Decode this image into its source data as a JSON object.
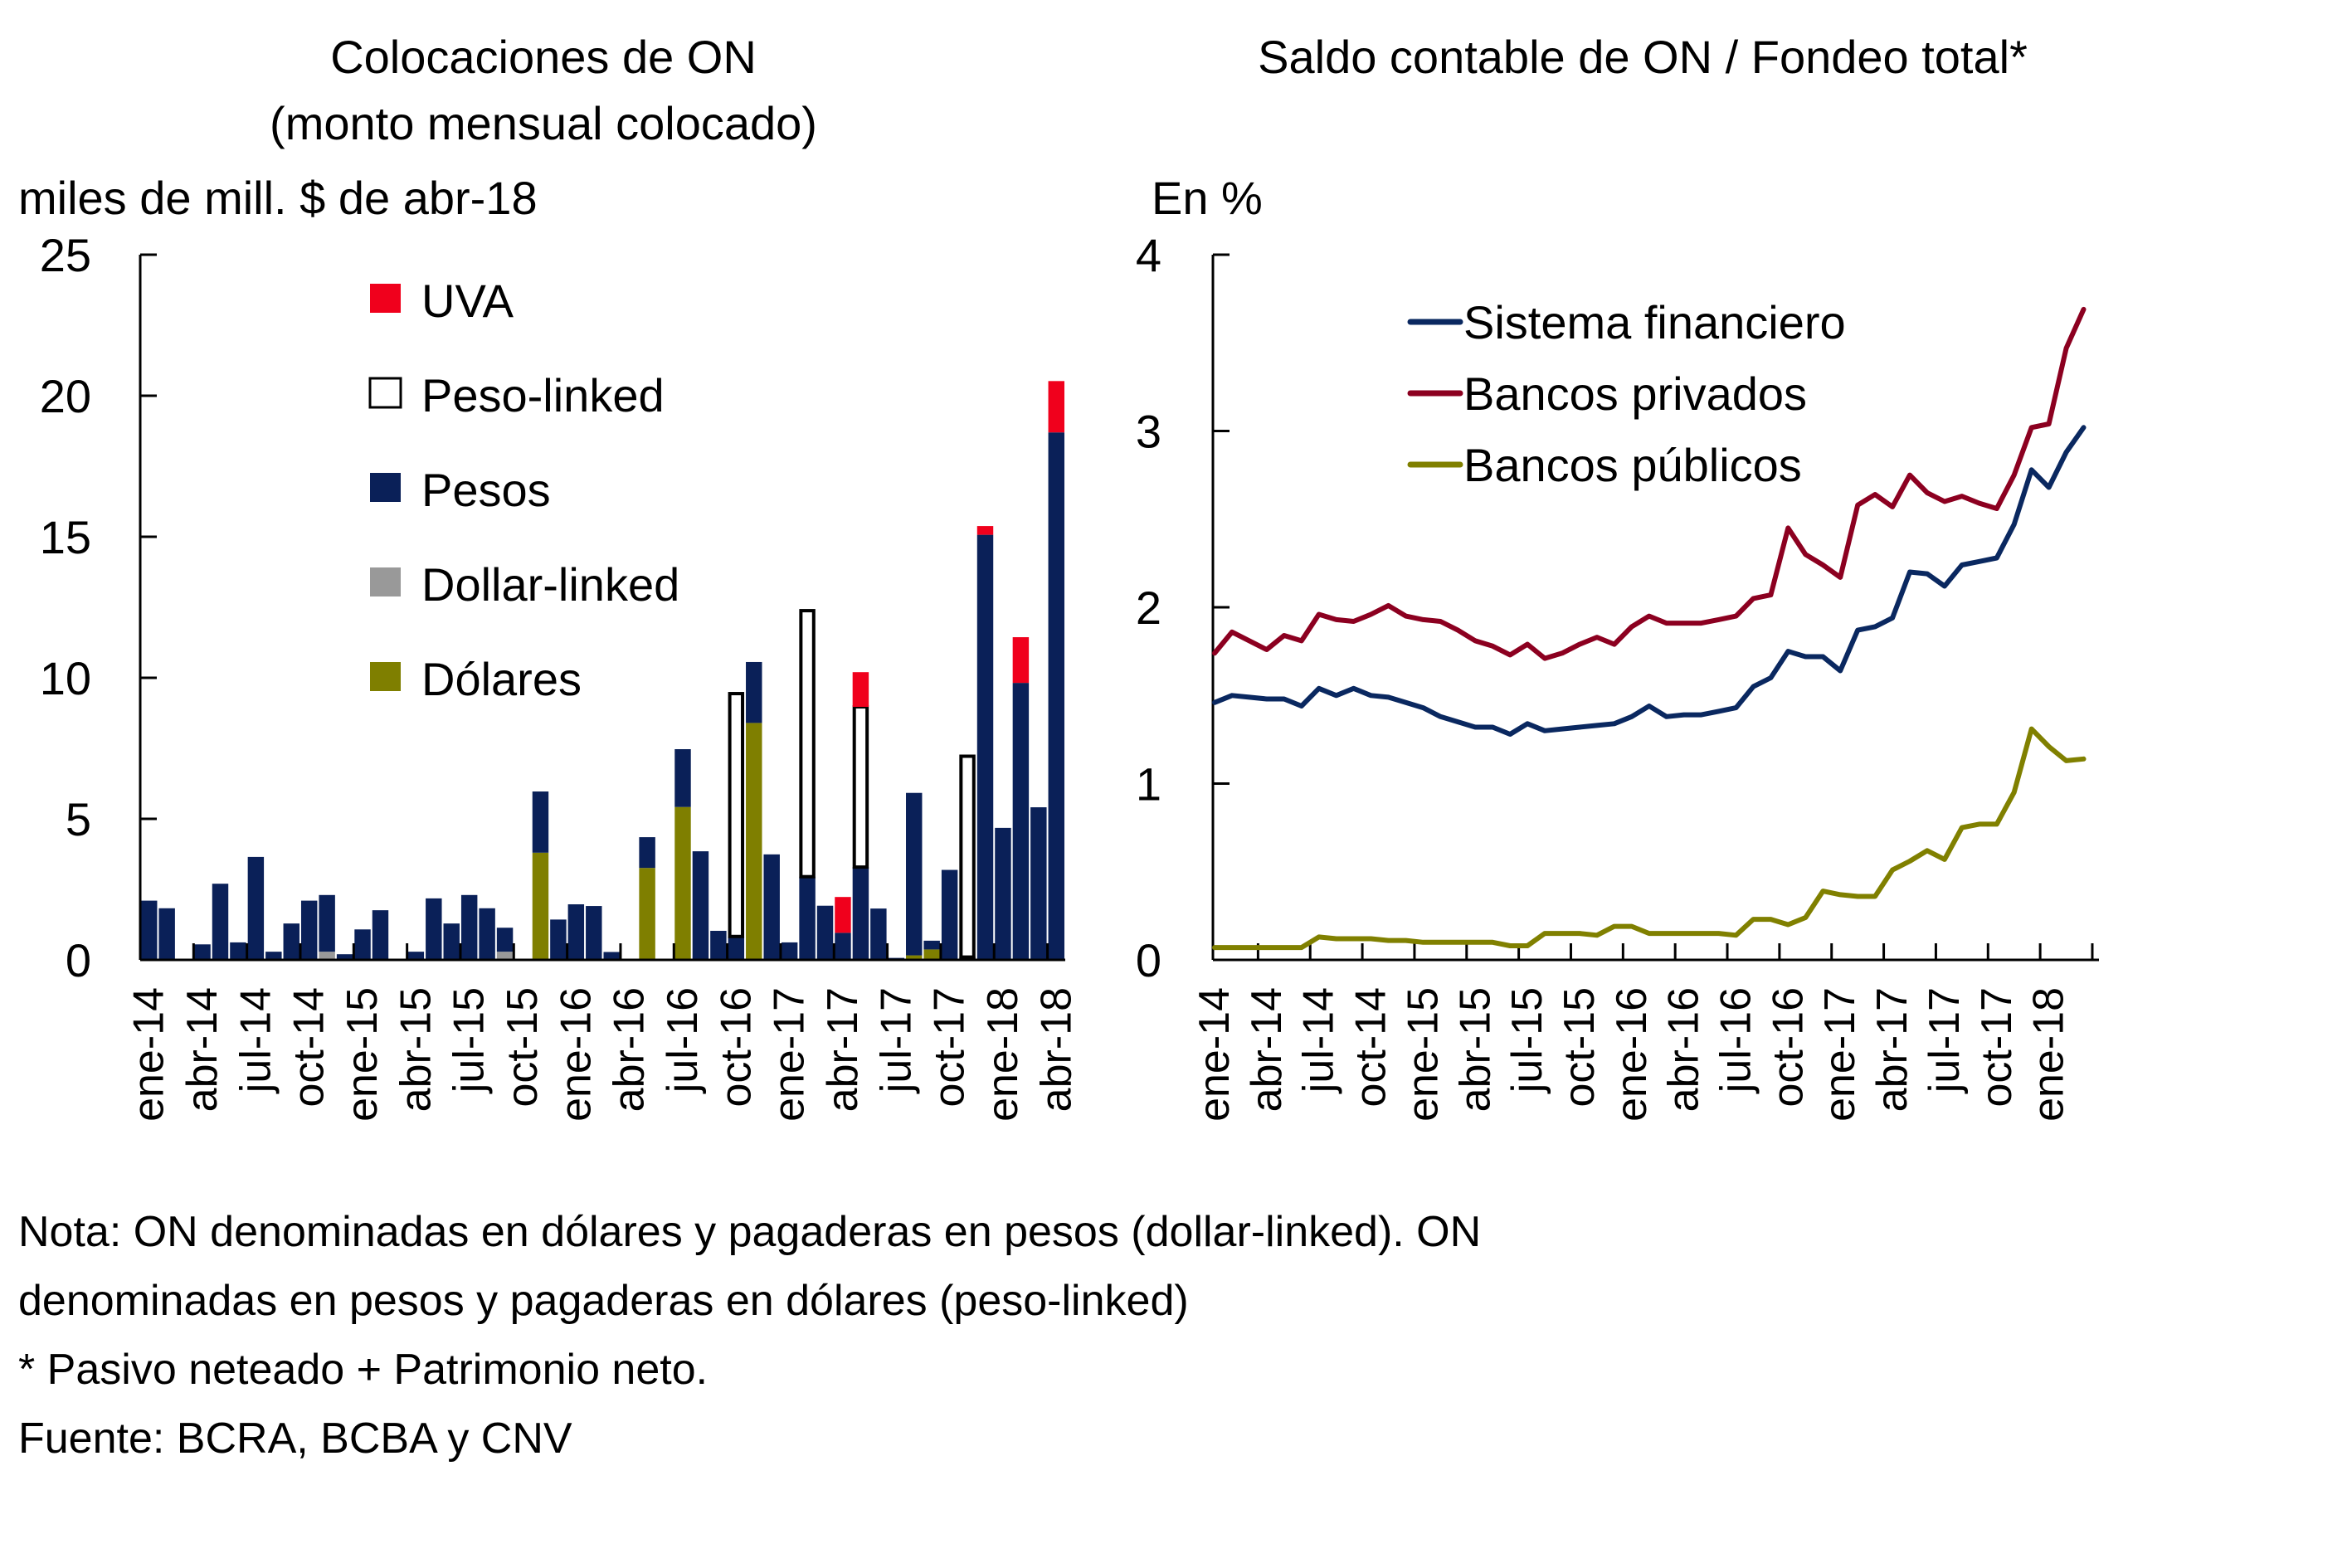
{
  "colors": {
    "uva": "#F0001C",
    "peso_linked_fill": "#FFFFFF",
    "peso_linked_stroke": "#000000",
    "pesos": "#0A2058",
    "dollar_linked": "#999999",
    "dolares": "#7F7F00",
    "sistema_financiero": "#0A2860",
    "bancos_privados": "#8C0020",
    "bancos_publicos": "#808000"
  },
  "notes": [
    "Nota: ON denominadas en dólares y pagaderas en pesos (dollar-linked). ON",
    "denominadas en pesos y pagaderas en dólares (peso-linked)",
    "* Pasivo neteado + Patrimonio neto.",
    "Fuente: BCRA, BCBA y CNV"
  ],
  "chart_data": [
    {
      "type": "bar",
      "stacked": true,
      "title": "Colocaciones de ON",
      "subtitle": "(monto mensual colocado)",
      "ylabel": "miles de mill. $ de abr-18",
      "xlabel": "",
      "ylim": [
        0,
        25
      ],
      "yticks": [
        0,
        5,
        10,
        15,
        20,
        25
      ],
      "xtick_labels": [
        "ene-14",
        "abr-14",
        "jul-14",
        "oct-14",
        "ene-15",
        "abr-15",
        "jul-15",
        "oct-15",
        "ene-16",
        "abr-16",
        "jul-16",
        "oct-16",
        "ene-17",
        "abr-17",
        "jul-17",
        "oct-17",
        "ene-18",
        "abr-18"
      ],
      "legend_position": "top-center",
      "categories": [
        "ene-14",
        "feb-14",
        "mar-14",
        "abr-14",
        "may-14",
        "jun-14",
        "jul-14",
        "ago-14",
        "sep-14",
        "oct-14",
        "nov-14",
        "dic-14",
        "ene-15",
        "feb-15",
        "mar-15",
        "abr-15",
        "may-15",
        "jun-15",
        "jul-15",
        "ago-15",
        "sep-15",
        "oct-15",
        "nov-15",
        "dic-15",
        "ene-16",
        "feb-16",
        "mar-16",
        "abr-16",
        "may-16",
        "jun-16",
        "jul-16",
        "ago-16",
        "sep-16",
        "oct-16",
        "nov-16",
        "dic-16",
        "ene-17",
        "feb-17",
        "mar-17",
        "abr-17",
        "may-17",
        "jun-17",
        "jul-17",
        "ago-17",
        "sep-17",
        "oct-17",
        "nov-17",
        "dic-17",
        "ene-18",
        "feb-18",
        "mar-18",
        "abr-18"
      ],
      "series": [
        {
          "name": "Dólares",
          "key": "dolares",
          "values": [
            0,
            0,
            0,
            0,
            0,
            0,
            0,
            0,
            0,
            0,
            0,
            0,
            0,
            0,
            0,
            0,
            0,
            0,
            0,
            0,
            0,
            0,
            3.8,
            0,
            0,
            0,
            0,
            0,
            3.26,
            0,
            5.42,
            0,
            0,
            0,
            8.4,
            0,
            0,
            0,
            0,
            0,
            0,
            0,
            0,
            0.16,
            0.37,
            0,
            0,
            0,
            0,
            0,
            0,
            0
          ]
        },
        {
          "name": "Dollar-linked",
          "key": "dollar_linked",
          "values": [
            0,
            0,
            0,
            0,
            0,
            0,
            0,
            0,
            0,
            0,
            0.29,
            0,
            0,
            0,
            0,
            0,
            0,
            0,
            0,
            0,
            0.29,
            0,
            0,
            0,
            0,
            0,
            0,
            0,
            0,
            0,
            0,
            0,
            0,
            0,
            0,
            0,
            0,
            0,
            0,
            0,
            0,
            0,
            0,
            0,
            0,
            0,
            0,
            0,
            0,
            0,
            0,
            0
          ]
        },
        {
          "name": "Pesos",
          "key": "pesos",
          "values": [
            2.1,
            1.83,
            0,
            0.55,
            2.7,
            0.62,
            3.65,
            0.29,
            1.29,
            2.1,
            2.01,
            0.2,
            1.08,
            1.76,
            0,
            0.29,
            2.18,
            1.29,
            2.3,
            1.83,
            0.85,
            0,
            2.17,
            1.43,
            1.97,
            1.91,
            0.28,
            0,
            1.09,
            0,
            2.05,
            3.85,
            1.03,
            0.83,
            2.16,
            3.74,
            0.62,
            2.95,
            1.92,
            0.96,
            3.29,
            1.82,
            0.07,
            5.76,
            0.31,
            3.19,
            0.1,
            15.07,
            4.68,
            9.82,
            5.41,
            18.7
          ]
        },
        {
          "name": "Peso-linked",
          "key": "peso_linked",
          "values": [
            0,
            0,
            0,
            0,
            0,
            0,
            0,
            0,
            0,
            0,
            0,
            0,
            0,
            0,
            0,
            0,
            0,
            0,
            0,
            0,
            0,
            0,
            0,
            0,
            0,
            0,
            0,
            0,
            0,
            0,
            0,
            0,
            0,
            8.61,
            0,
            0,
            0,
            9.43,
            0,
            0,
            5.68,
            0,
            0,
            0,
            0,
            0,
            7.12,
            0,
            0,
            0,
            0,
            0
          ]
        },
        {
          "name": "UVA",
          "key": "uva",
          "values": [
            0,
            0,
            0,
            0,
            0,
            0,
            0,
            0,
            0,
            0,
            0,
            0,
            0,
            0,
            0,
            0,
            0,
            0,
            0,
            0,
            0,
            0,
            0,
            0,
            0,
            0,
            0,
            0,
            0,
            0,
            0,
            0,
            0,
            0,
            0,
            0,
            0,
            0,
            0,
            1.27,
            1.23,
            0,
            0,
            0,
            0,
            0,
            0,
            0.31,
            0,
            1.62,
            0,
            1.82
          ]
        }
      ],
      "legend": [
        {
          "name": "UVA",
          "key": "uva"
        },
        {
          "name": "Peso-linked",
          "key": "peso_linked"
        },
        {
          "name": "Pesos",
          "key": "pesos"
        },
        {
          "name": "Dollar-linked",
          "key": "dollar_linked"
        },
        {
          "name": "Dólares",
          "key": "dolares"
        }
      ]
    },
    {
      "type": "line",
      "title": "Saldo contable de ON / Fondeo total*",
      "ylabel": "En %",
      "xlabel": "",
      "ylim": [
        0,
        4
      ],
      "yticks": [
        0,
        1,
        2,
        3,
        4
      ],
      "xtick_labels": [
        "ene-14",
        "abr-14",
        "jul-14",
        "oct-14",
        "ene-15",
        "abr-15",
        "jul-15",
        "oct-15",
        "ene-16",
        "abr-16",
        "jul-16",
        "oct-16",
        "ene-17",
        "abr-17",
        "jul-17",
        "oct-17",
        "ene-18"
      ],
      "legend_position": "top-left",
      "x": [
        "ene-14",
        "feb-14",
        "mar-14",
        "abr-14",
        "may-14",
        "jun-14",
        "jul-14",
        "ago-14",
        "sep-14",
        "oct-14",
        "nov-14",
        "dic-14",
        "ene-15",
        "feb-15",
        "mar-15",
        "abr-15",
        "may-15",
        "jun-15",
        "jul-15",
        "ago-15",
        "sep-15",
        "oct-15",
        "nov-15",
        "dic-15",
        "ene-16",
        "feb-16",
        "mar-16",
        "abr-16",
        "may-16",
        "jun-16",
        "jul-16",
        "ago-16",
        "sep-16",
        "oct-16",
        "nov-16",
        "dic-16",
        "ene-17",
        "feb-17",
        "mar-17",
        "abr-17",
        "may-17",
        "jun-17",
        "jul-17",
        "ago-17",
        "sep-17",
        "oct-17",
        "nov-17",
        "dic-17",
        "ene-18",
        "feb-18",
        "mar-18"
      ],
      "series": [
        {
          "name": "Sistema financiero",
          "key": "sistema_financiero",
          "values": [
            1.46,
            1.5,
            1.49,
            1.48,
            1.48,
            1.44,
            1.54,
            1.5,
            1.54,
            1.5,
            1.49,
            1.46,
            1.43,
            1.38,
            1.35,
            1.32,
            1.32,
            1.28,
            1.34,
            1.3,
            1.31,
            1.32,
            1.33,
            1.34,
            1.38,
            1.44,
            1.38,
            1.39,
            1.39,
            1.41,
            1.43,
            1.55,
            1.6,
            1.75,
            1.72,
            1.72,
            1.64,
            1.87,
            1.89,
            1.94,
            2.2,
            2.19,
            2.12,
            2.24,
            2.26,
            2.28,
            2.47,
            2.78,
            2.68,
            2.88,
            3.02
          ]
        },
        {
          "name": "Bancos privados",
          "key": "bancos_privados",
          "values": [
            1.74,
            1.86,
            1.81,
            1.76,
            1.84,
            1.81,
            1.96,
            1.93,
            1.92,
            1.96,
            2.01,
            1.95,
            1.93,
            1.92,
            1.87,
            1.81,
            1.78,
            1.73,
            1.79,
            1.71,
            1.74,
            1.79,
            1.83,
            1.79,
            1.89,
            1.95,
            1.91,
            1.91,
            1.91,
            1.93,
            1.95,
            2.05,
            2.07,
            2.45,
            2.3,
            2.24,
            2.17,
            2.58,
            2.64,
            2.57,
            2.75,
            2.65,
            2.6,
            2.63,
            2.59,
            2.56,
            2.75,
            3.02,
            3.04,
            3.47,
            3.69
          ]
        },
        {
          "name": "Bancos públicos",
          "key": "bancos_publicos",
          "values": [
            0.07,
            0.07,
            0.07,
            0.07,
            0.07,
            0.07,
            0.13,
            0.12,
            0.12,
            0.12,
            0.11,
            0.11,
            0.1,
            0.1,
            0.1,
            0.1,
            0.1,
            0.08,
            0.08,
            0.15,
            0.15,
            0.15,
            0.14,
            0.19,
            0.19,
            0.15,
            0.15,
            0.15,
            0.15,
            0.15,
            0.14,
            0.23,
            0.23,
            0.2,
            0.24,
            0.39,
            0.37,
            0.36,
            0.36,
            0.51,
            0.56,
            0.62,
            0.57,
            0.75,
            0.77,
            0.77,
            0.95,
            1.31,
            1.21,
            1.13,
            1.14
          ]
        }
      ],
      "legend": [
        {
          "name": "Sistema financiero",
          "key": "sistema_financiero"
        },
        {
          "name": "Bancos privados",
          "key": "bancos_privados"
        },
        {
          "name": "Bancos públicos",
          "key": "bancos_publicos"
        }
      ]
    }
  ]
}
